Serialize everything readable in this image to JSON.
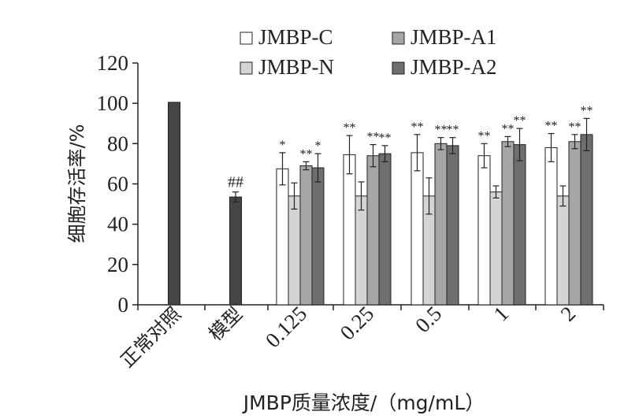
{
  "chart_data": {
    "type": "bar",
    "title": "",
    "xlabel": "JMBP质量浓度/（mg/mL）",
    "ylabel": "细胞存活率/%",
    "ylim": [
      0,
      120
    ],
    "yticks": [
      0,
      20,
      40,
      60,
      80,
      100,
      120
    ],
    "categories": [
      "正常对照",
      "模型",
      "0.125",
      "0.25",
      "0.5",
      "1",
      "2"
    ],
    "controls": [
      {
        "category": "正常对照",
        "value": 100.5,
        "error": null,
        "annotation": ""
      },
      {
        "category": "模型",
        "value": 53.5,
        "error": 2.5,
        "annotation": "##"
      }
    ],
    "series": [
      {
        "name": "JMBP-C",
        "color": "#ffffff",
        "values": [
          null,
          null,
          67.5,
          74.5,
          75.5,
          74.0,
          78.0
        ],
        "errors": [
          null,
          null,
          8,
          9.5,
          9,
          6,
          7
        ],
        "annotations": [
          "",
          "",
          "*",
          "**",
          "**",
          "**",
          "**"
        ]
      },
      {
        "name": "JMBP-N",
        "color": "#d4d4d4",
        "values": [
          null,
          null,
          54.0,
          54.0,
          54.0,
          56.0,
          54.0
        ],
        "errors": [
          null,
          null,
          6.5,
          7,
          9,
          3,
          5
        ],
        "annotations": [
          "",
          "",
          "",
          "",
          "",
          "",
          ""
        ]
      },
      {
        "name": "JMBP-A1",
        "color": "#a6a6a6",
        "values": [
          null,
          null,
          69.0,
          74.0,
          80.0,
          81.0,
          81.0
        ],
        "errors": [
          null,
          null,
          2,
          5.5,
          3,
          2.5,
          3.5
        ],
        "annotations": [
          "",
          "",
          "**",
          "**",
          "**",
          "**",
          "**"
        ]
      },
      {
        "name": "JMBP-A2",
        "color": "#6e6e6e",
        "values": [
          null,
          null,
          68.0,
          75.0,
          79.0,
          79.5,
          84.5
        ],
        "errors": [
          null,
          null,
          7,
          4,
          4,
          8,
          8
        ],
        "annotations": [
          "",
          "",
          "*",
          "**",
          "**",
          "**",
          "**"
        ]
      }
    ],
    "control_color": "#454545",
    "legend_position": "top",
    "grid": false
  }
}
